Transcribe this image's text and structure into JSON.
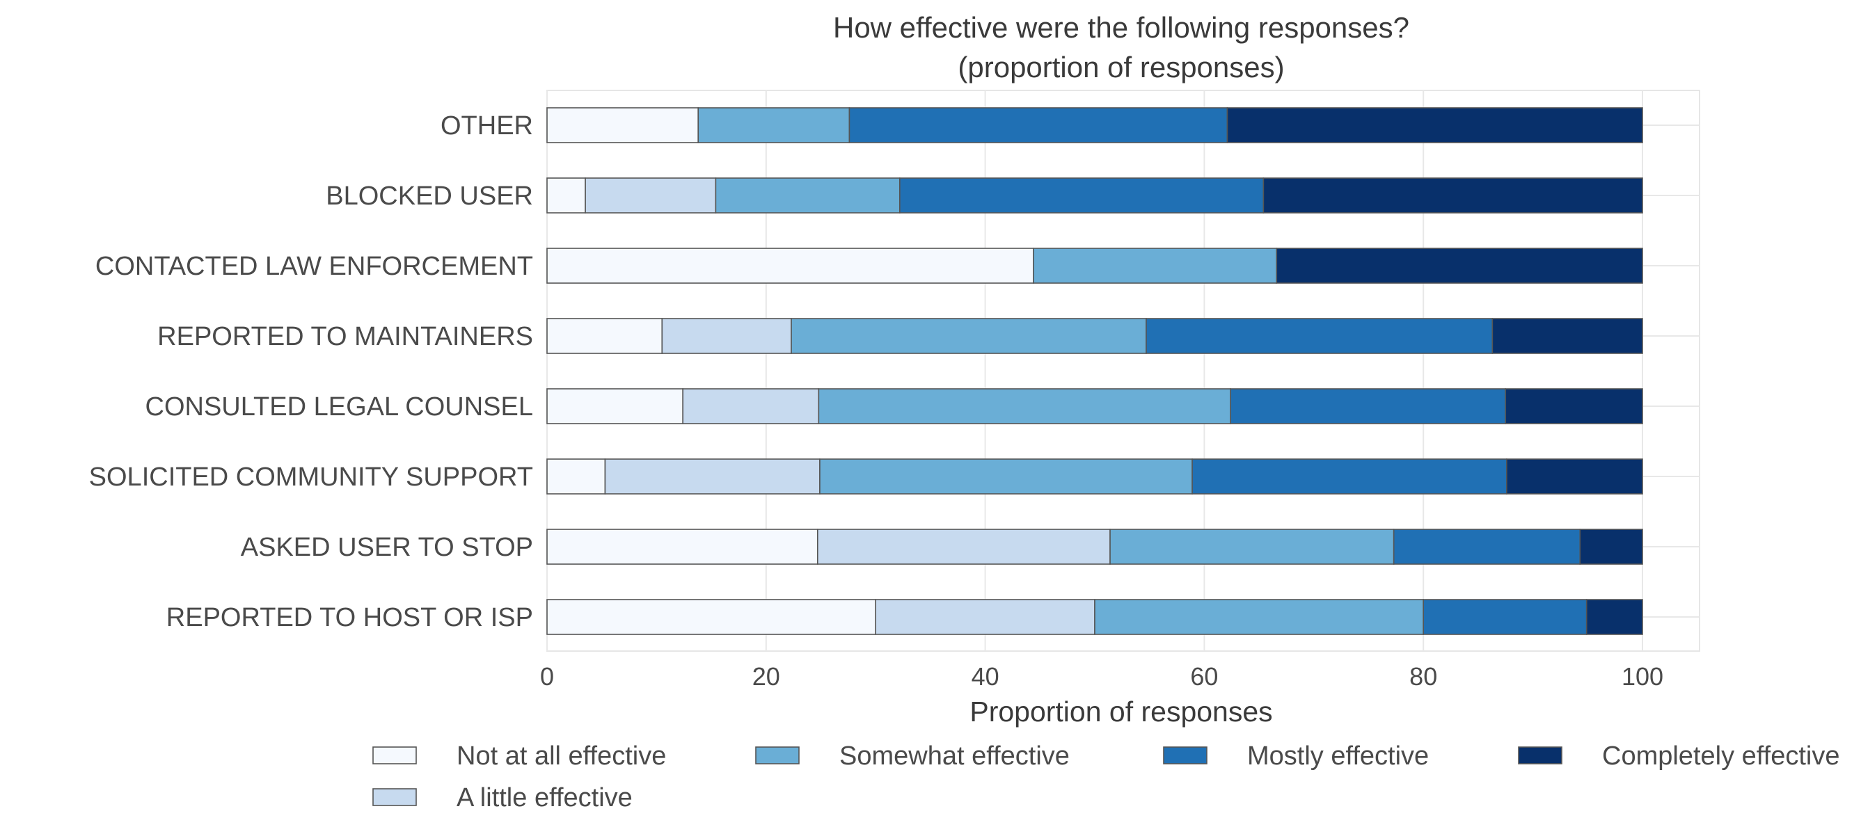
{
  "chart_data": {
    "type": "bar",
    "orientation": "horizontal",
    "stacked": true,
    "title": "How effective were the following responses?",
    "subtitle": "(proportion of responses)",
    "xlabel": "Proportion of responses",
    "ylabel": "",
    "xlim": [
      0,
      100
    ],
    "xticks": [
      0,
      20,
      40,
      60,
      80,
      100
    ],
    "grid": true,
    "legend_position": "bottom",
    "categories": [
      "OTHER",
      "BLOCKED USER",
      "CONTACTED LAW ENFORCEMENT",
      "REPORTED TO MAINTAINERS",
      "CONSULTED LEGAL COUNSEL",
      "SOLICITED COMMUNITY SUPPORT",
      "ASKED USER TO STOP",
      "REPORTED TO HOST OR ISP"
    ],
    "series": [
      {
        "name": "Not at all effective",
        "color": "#f5f9fe",
        "values": [
          13.8,
          3.5,
          44.4,
          10.5,
          12.4,
          5.3,
          24.7,
          30.0
        ]
      },
      {
        "name": "A little effective",
        "color": "#c7daef",
        "values": [
          0,
          11.9,
          0,
          11.8,
          12.4,
          19.6,
          26.7,
          20.0
        ]
      },
      {
        "name": "Somewhat effective",
        "color": "#6aaed6",
        "values": [
          13.8,
          16.8,
          22.2,
          32.4,
          37.6,
          34.0,
          25.9,
          30.0
        ]
      },
      {
        "name": "Mostly effective",
        "color": "#2070b4",
        "values": [
          34.5,
          33.2,
          0,
          31.6,
          25.1,
          28.7,
          17.0,
          14.9
        ]
      },
      {
        "name": "Completely effective",
        "color": "#08306b",
        "values": [
          37.9,
          34.6,
          33.4,
          13.7,
          12.5,
          12.4,
          5.7,
          5.1
        ]
      }
    ]
  }
}
